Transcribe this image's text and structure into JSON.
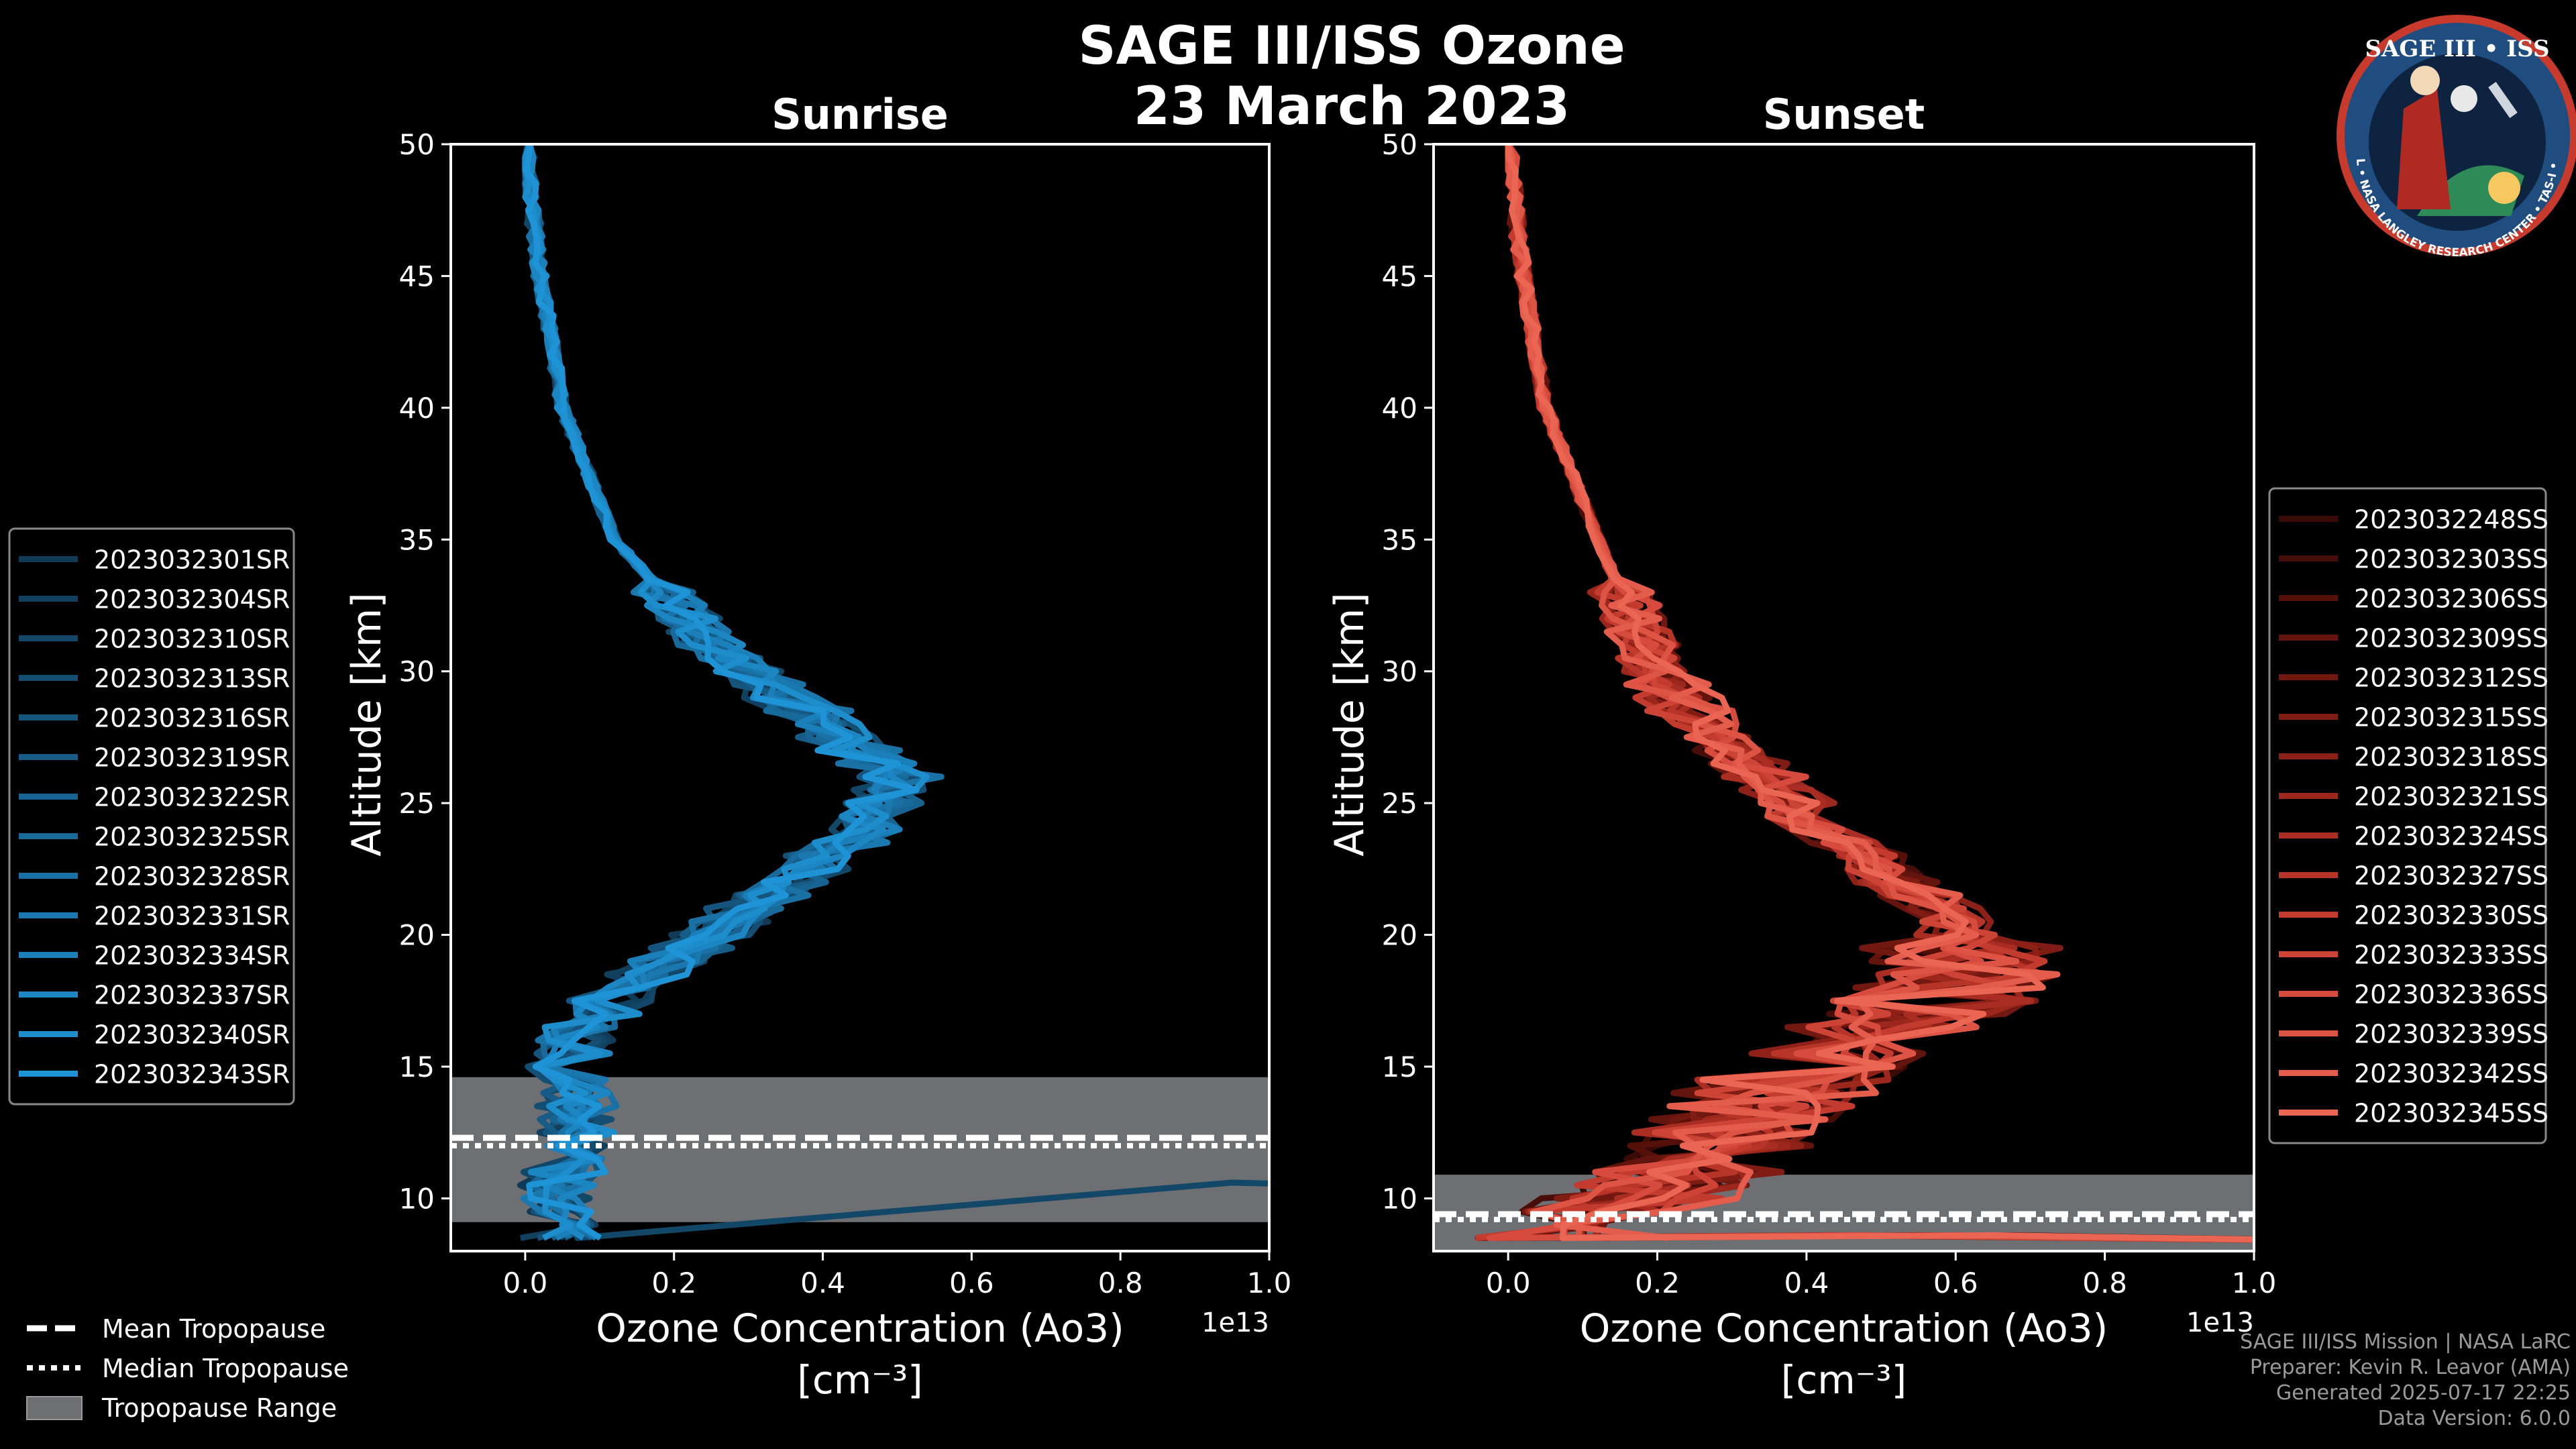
{
  "figure": {
    "title_line1": "SAGE III/ISS Ozone",
    "title_line2": "23 March 2023",
    "credits": [
      "SAGE III/ISS Mission | NASA LaRC",
      "Preparer: Kevin R. Leavor (AMA)",
      "Generated 2025-07-17 22:25",
      "Data Version: 6.0.0"
    ],
    "logo": {
      "title": "SAGE III • ISS",
      "ring_text": "BALL • NASA LANGLEY RESEARCH CENTER • TAS-I • ESA"
    },
    "tropopause_legend": [
      "Mean Tropopause",
      "Median Tropopause",
      "Tropopause Range"
    ],
    "colors": {
      "background": "#000000",
      "sunrise": "#1f8fd0",
      "sunset": "#e8604c",
      "tropo_band": "#6d6f73",
      "axes": "#ffffff"
    }
  },
  "chart_data": [
    {
      "type": "line",
      "id": "sunrise",
      "title": "Sunrise",
      "xlabel_line1": "Ozone Concentration (Ao3)",
      "xlabel_line2": "[cm⁻³]",
      "ylabel": "Altitude [km]",
      "x_scale_label": "1e13",
      "xlim": [
        -0.1,
        1.0
      ],
      "ylim": [
        8,
        50
      ],
      "xticks": [
        0.0,
        0.2,
        0.4,
        0.6,
        0.8,
        1.0
      ],
      "xtick_labels": [
        "0.0",
        "0.2",
        "0.4",
        "0.6",
        "0.8",
        "1.0"
      ],
      "yticks": [
        10,
        15,
        20,
        25,
        30,
        35,
        40,
        45,
        50
      ],
      "ytick_labels": [
        "10",
        "15",
        "20",
        "25",
        "30",
        "35",
        "40",
        "45",
        "50"
      ],
      "tropopause": {
        "mean": 12.3,
        "median": 12.0,
        "min": 9.1,
        "max": 14.6
      },
      "mean_profile": [
        [
          0.0,
          50
        ],
        [
          0.02,
          45
        ],
        [
          0.05,
          40
        ],
        [
          0.12,
          35
        ],
        [
          0.25,
          31
        ],
        [
          0.35,
          29
        ],
        [
          0.45,
          27
        ],
        [
          0.5,
          26
        ],
        [
          0.45,
          24
        ],
        [
          0.38,
          22.5
        ],
        [
          0.3,
          21
        ],
        [
          0.22,
          19.5
        ],
        [
          0.14,
          18
        ],
        [
          0.08,
          16.5
        ],
        [
          0.06,
          15
        ],
        [
          0.07,
          13.5
        ],
        [
          0.06,
          12
        ],
        [
          0.05,
          11
        ],
        [
          0.04,
          10
        ],
        [
          0.05,
          8.5
        ]
      ],
      "series": [
        {
          "name": "2023032301SR",
          "color": "#103a55"
        },
        {
          "name": "2023032304SR",
          "color": "#11405e"
        },
        {
          "name": "2023032310SR",
          "color": "#124768"
        },
        {
          "name": "2023032313SR",
          "color": "#144e72"
        },
        {
          "name": "2023032316SR",
          "color": "#15557d"
        },
        {
          "name": "2023032319SR",
          "color": "#165c87"
        },
        {
          "name": "2023032322SR",
          "color": "#176391"
        },
        {
          "name": "2023032325SR",
          "color": "#186a9b"
        },
        {
          "name": "2023032328SR",
          "color": "#1971a5"
        },
        {
          "name": "2023032331SR",
          "color": "#1a78af"
        },
        {
          "name": "2023032334SR",
          "color": "#1b7fb9"
        },
        {
          "name": "2023032337SR",
          "color": "#1c86c3"
        },
        {
          "name": "2023032340SR",
          "color": "#1d8dcc"
        },
        {
          "name": "2023032343SR",
          "color": "#1e94d6"
        }
      ]
    },
    {
      "type": "line",
      "id": "sunset",
      "title": "Sunset",
      "xlabel_line1": "Ozone Concentration (Ao3)",
      "xlabel_line2": "[cm⁻³]",
      "ylabel": "Altitude [km]",
      "x_scale_label": "1e13",
      "xlim": [
        -0.1,
        1.0
      ],
      "ylim": [
        8,
        50
      ],
      "xticks": [
        0.0,
        0.2,
        0.4,
        0.6,
        0.8,
        1.0
      ],
      "xtick_labels": [
        "0.0",
        "0.2",
        "0.4",
        "0.6",
        "0.8",
        "1.0"
      ],
      "yticks": [
        10,
        15,
        20,
        25,
        30,
        35,
        40,
        45,
        50
      ],
      "ytick_labels": [
        "10",
        "15",
        "20",
        "25",
        "30",
        "35",
        "40",
        "45",
        "50"
      ],
      "tropopause": {
        "mean": 9.4,
        "median": 9.2,
        "min": 8.0,
        "max": 10.9
      },
      "mean_profile": [
        [
          0.0,
          50
        ],
        [
          0.02,
          45
        ],
        [
          0.05,
          40
        ],
        [
          0.12,
          35
        ],
        [
          0.2,
          30
        ],
        [
          0.3,
          27
        ],
        [
          0.4,
          24.5
        ],
        [
          0.5,
          22.5
        ],
        [
          0.6,
          20.5
        ],
        [
          0.62,
          18.5
        ],
        [
          0.55,
          17
        ],
        [
          0.45,
          16
        ],
        [
          0.38,
          14.5
        ],
        [
          0.32,
          13
        ],
        [
          0.28,
          11.5
        ],
        [
          0.2,
          10.5
        ],
        [
          0.12,
          9.5
        ],
        [
          0.08,
          8.5
        ]
      ],
      "series": [
        {
          "name": "2023032248SS",
          "color": "#3a0a06"
        },
        {
          "name": "2023032303SS",
          "color": "#470d08"
        },
        {
          "name": "2023032306SS",
          "color": "#55100a"
        },
        {
          "name": "2023032309SS",
          "color": "#63140d"
        },
        {
          "name": "2023032312SS",
          "color": "#711810"
        },
        {
          "name": "2023032315SS",
          "color": "#7f1c14"
        },
        {
          "name": "2023032318SS",
          "color": "#8d2118"
        },
        {
          "name": "2023032321SS",
          "color": "#9b271d"
        },
        {
          "name": "2023032324SS",
          "color": "#a92d22"
        },
        {
          "name": "2023032327SS",
          "color": "#b73428"
        },
        {
          "name": "2023032330SS",
          "color": "#c33b2f"
        },
        {
          "name": "2023032333SS",
          "color": "#cd4336"
        },
        {
          "name": "2023032336SS",
          "color": "#d64b3d"
        },
        {
          "name": "2023032339SS",
          "color": "#de5444"
        },
        {
          "name": "2023032342SS",
          "color": "#e45c4b"
        },
        {
          "name": "2023032345SS",
          "color": "#ea6552"
        }
      ]
    }
  ]
}
